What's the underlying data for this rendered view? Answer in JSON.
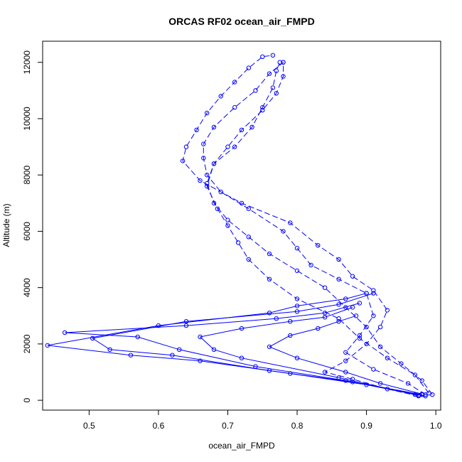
{
  "chart_data": {
    "type": "line",
    "title": "ORCAS RF02 ocean_air_FMPD",
    "xlabel": "ocean_air_FMPD",
    "ylabel": "Altitude (m)",
    "xlim": [
      0.433,
      1.007
    ],
    "ylim": [
      -350,
      12750
    ],
    "x_ticks": [
      0.5,
      0.6,
      0.7,
      0.8,
      0.9,
      1.0
    ],
    "x_tick_labels": [
      "0.5",
      "0.6",
      "0.7",
      "0.8",
      "0.9",
      "1.0"
    ],
    "y_ticks": [
      0,
      2000,
      4000,
      6000,
      8000,
      10000,
      12000
    ],
    "y_tick_labels": [
      "0",
      "2000",
      "4000",
      "6000",
      "8000",
      "10000",
      "12000"
    ],
    "grid": false,
    "marker": "open-circle",
    "series_color": "#0000ff",
    "series": [
      {
        "line_style": "dashed",
        "points": [
          [
            0.975,
            150
          ],
          [
            0.93,
            400
          ],
          [
            0.88,
            750
          ],
          [
            0.84,
            1000
          ],
          [
            0.87,
            1400
          ],
          [
            0.9,
            2000
          ],
          [
            0.92,
            2600
          ],
          [
            0.93,
            3200
          ],
          [
            0.91,
            3900
          ],
          [
            0.88,
            4400
          ],
          [
            0.86,
            5000
          ],
          [
            0.83,
            5500
          ],
          [
            0.79,
            6300
          ],
          [
            0.72,
            7000
          ],
          [
            0.66,
            7800
          ],
          [
            0.635,
            8500
          ],
          [
            0.64,
            9000
          ],
          [
            0.655,
            9600
          ],
          [
            0.67,
            10200
          ],
          [
            0.69,
            10800
          ],
          [
            0.71,
            11300
          ],
          [
            0.73,
            11800
          ],
          [
            0.75,
            12200
          ],
          [
            0.765,
            12250
          ]
        ]
      },
      {
        "line_style": "dashed",
        "points": [
          [
            0.985,
            200
          ],
          [
            0.96,
            600
          ],
          [
            0.91,
            1100
          ],
          [
            0.87,
            1700
          ],
          [
            0.89,
            2300
          ],
          [
            0.91,
            3000
          ],
          [
            0.9,
            3800
          ],
          [
            0.86,
            4300
          ],
          [
            0.82,
            4800
          ],
          [
            0.8,
            5400
          ],
          [
            0.78,
            6000
          ],
          [
            0.73,
            6800
          ],
          [
            0.69,
            7400
          ],
          [
            0.67,
            8000
          ],
          [
            0.665,
            8600
          ],
          [
            0.665,
            9100
          ],
          [
            0.68,
            9700
          ],
          [
            0.71,
            10400
          ],
          [
            0.74,
            11000
          ],
          [
            0.76,
            11600
          ],
          [
            0.78,
            12000
          ]
        ]
      },
      {
        "line_style": "dashed",
        "points": [
          [
            0.99,
            250
          ],
          [
            0.97,
            900
          ],
          [
            0.93,
            1500
          ],
          [
            0.89,
            2200
          ],
          [
            0.86,
            2900
          ],
          [
            0.8,
            3600
          ],
          [
            0.76,
            4300
          ],
          [
            0.73,
            5000
          ],
          [
            0.715,
            5600
          ],
          [
            0.7,
            6200
          ],
          [
            0.685,
            6800
          ],
          [
            0.67,
            7600
          ],
          [
            0.68,
            8400
          ],
          [
            0.7,
            9000
          ],
          [
            0.72,
            9600
          ],
          [
            0.75,
            10300
          ],
          [
            0.77,
            10900
          ],
          [
            0.78,
            11500
          ],
          [
            0.78,
            12000
          ]
        ]
      },
      {
        "line_style": "dashed",
        "points": [
          [
            0.995,
            200
          ],
          [
            0.98,
            700
          ],
          [
            0.95,
            1300
          ],
          [
            0.92,
            1900
          ],
          [
            0.9,
            2600
          ],
          [
            0.87,
            3300
          ],
          [
            0.84,
            4000
          ],
          [
            0.8,
            4600
          ],
          [
            0.76,
            5200
          ],
          [
            0.73,
            5800
          ],
          [
            0.7,
            6400
          ],
          [
            0.68,
            7000
          ],
          [
            0.67,
            7700
          ],
          [
            0.68,
            8400
          ],
          [
            0.71,
            9000
          ],
          [
            0.735,
            9700
          ],
          [
            0.75,
            10400
          ],
          [
            0.765,
            11100
          ],
          [
            0.77,
            11700
          ],
          [
            0.775,
            12000
          ]
        ]
      },
      {
        "line_style": "solid",
        "points": [
          [
            0.985,
            150
          ],
          [
            0.9,
            550
          ],
          [
            0.79,
            950
          ],
          [
            0.66,
            1400
          ],
          [
            0.56,
            1600
          ],
          [
            0.44,
            1950
          ],
          [
            0.6,
            2650
          ],
          [
            0.76,
            3100
          ],
          [
            0.8,
            3350
          ],
          [
            0.87,
            3600
          ],
          [
            0.9,
            3800
          ]
        ]
      },
      {
        "line_style": "solid",
        "points": [
          [
            0.98,
            200
          ],
          [
            0.88,
            650
          ],
          [
            0.76,
            1050
          ],
          [
            0.62,
            1600
          ],
          [
            0.53,
            1800
          ],
          [
            0.505,
            2200
          ],
          [
            0.64,
            2800
          ],
          [
            0.8,
            3150
          ],
          [
            0.86,
            3400
          ],
          [
            0.91,
            3800
          ]
        ]
      },
      {
        "line_style": "solid",
        "points": [
          [
            0.975,
            180
          ],
          [
            0.87,
            700
          ],
          [
            0.74,
            1200
          ],
          [
            0.63,
            1800
          ],
          [
            0.57,
            2250
          ],
          [
            0.465,
            2400
          ],
          [
            0.64,
            2650
          ],
          [
            0.77,
            2900
          ],
          [
            0.84,
            3100
          ],
          [
            0.89,
            3450
          ]
        ]
      },
      {
        "line_style": "solid",
        "points": [
          [
            0.97,
            200
          ],
          [
            0.86,
            800
          ],
          [
            0.72,
            1500
          ],
          [
            0.68,
            1800
          ],
          [
            0.66,
            2250
          ],
          [
            0.72,
            2550
          ],
          [
            0.79,
            2800
          ],
          [
            0.84,
            2950
          ],
          [
            0.88,
            3300
          ]
        ]
      },
      {
        "line_style": "solid",
        "points": [
          [
            0.98,
            220
          ],
          [
            0.92,
            600
          ],
          [
            0.87,
            1000
          ],
          [
            0.8,
            1500
          ],
          [
            0.76,
            1900
          ],
          [
            0.79,
            2300
          ],
          [
            0.83,
            2550
          ],
          [
            0.86,
            2800
          ],
          [
            0.885,
            3000
          ]
        ]
      }
    ]
  }
}
